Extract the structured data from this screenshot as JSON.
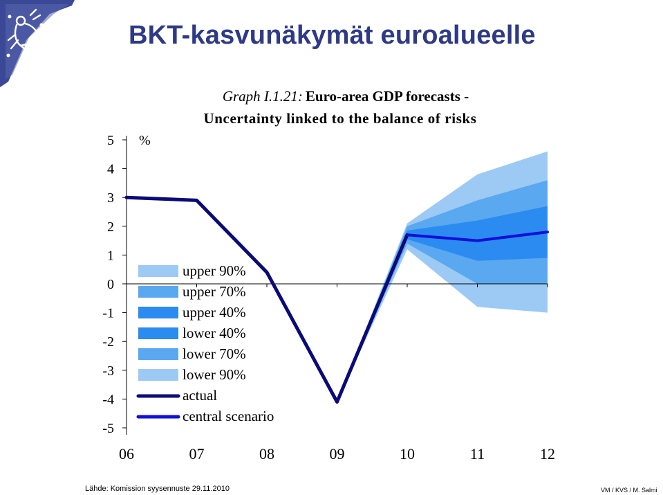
{
  "slide": {
    "title": "BKT-kasvunäkymät euroalueelle",
    "source": "Lähde: Komission syysennuste 29.11.2010",
    "credit": "VM / KVS / M. Salmi"
  },
  "colors": {
    "title": "#2e3a87",
    "actual": "#0a0a78",
    "central": "#1010d8",
    "band90": "#9ccaf5",
    "band70": "#5aa8f0",
    "band40": "#2c8bf0"
  },
  "chart_data": {
    "type": "area",
    "graph_label": "Graph I.1.21:",
    "title": "Euro-area GDP forecasts -",
    "subtitle": "Uncertainty linked to the balance of risks",
    "unit": "%",
    "xticks": [
      "06",
      "07",
      "08",
      "09",
      "10",
      "11",
      "12"
    ],
    "ylim": [
      -5,
      5
    ],
    "yticks": [
      "5",
      "4",
      "3",
      "2",
      "1",
      "0",
      "-1",
      "-2",
      "-3",
      "-4",
      "-5"
    ],
    "grid": false,
    "legend_position": "left",
    "series": [
      {
        "name": "actual",
        "x": [
          "06",
          "07",
          "08",
          "09",
          "10"
        ],
        "values": [
          3.0,
          2.9,
          0.4,
          -4.1,
          1.7
        ]
      },
      {
        "name": "central scenario",
        "x": [
          "10",
          "11",
          "12"
        ],
        "values": [
          1.7,
          1.5,
          1.8
        ]
      }
    ],
    "bands": [
      {
        "name": "upper 90%",
        "x": [
          "09",
          "10",
          "11",
          "12"
        ],
        "values": [
          -4.1,
          2.1,
          3.8,
          4.6
        ]
      },
      {
        "name": "upper 70%",
        "x": [
          "09",
          "10",
          "11",
          "12"
        ],
        "values": [
          -4.1,
          2.0,
          2.9,
          3.6
        ]
      },
      {
        "name": "upper 40%",
        "x": [
          "09",
          "10",
          "11",
          "12"
        ],
        "values": [
          -4.1,
          1.85,
          2.2,
          2.7
        ]
      },
      {
        "name": "lower 40%",
        "x": [
          "09",
          "10",
          "11",
          "12"
        ],
        "values": [
          -4.1,
          1.55,
          0.8,
          0.9
        ]
      },
      {
        "name": "lower 70%",
        "x": [
          "09",
          "10",
          "11",
          "12"
        ],
        "values": [
          -4.1,
          1.4,
          0.0,
          0.0
        ]
      },
      {
        "name": "lower 90%",
        "x": [
          "09",
          "10",
          "11",
          "12"
        ],
        "values": [
          -4.1,
          1.2,
          -0.8,
          -1.0
        ]
      }
    ],
    "legend": [
      {
        "label": "upper 90%",
        "kind": "box",
        "color": "#9ccaf5"
      },
      {
        "label": "upper 70%",
        "kind": "box",
        "color": "#5aa8f0"
      },
      {
        "label": "upper 40%",
        "kind": "box",
        "color": "#2c8bf0"
      },
      {
        "label": "lower 40%",
        "kind": "box",
        "color": "#2c8bf0"
      },
      {
        "label": "lower 70%",
        "kind": "box",
        "color": "#5aa8f0"
      },
      {
        "label": "lower 90%",
        "kind": "box",
        "color": "#9ccaf5"
      },
      {
        "label": "actual",
        "kind": "line",
        "color": "#0a0a78"
      },
      {
        "label": "central scenario",
        "kind": "line",
        "color": "#1010d8"
      }
    ]
  }
}
